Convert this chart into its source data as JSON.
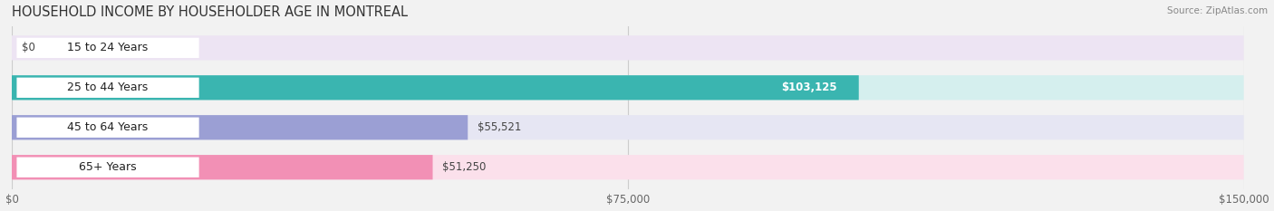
{
  "title": "HOUSEHOLD INCOME BY HOUSEHOLDER AGE IN MONTREAL",
  "source": "Source: ZipAtlas.com",
  "categories": [
    "15 to 24 Years",
    "25 to 44 Years",
    "45 to 64 Years",
    "65+ Years"
  ],
  "values": [
    0,
    103125,
    55521,
    51250
  ],
  "labels": [
    "$0",
    "$103,125",
    "$55,521",
    "$51,250"
  ],
  "label_inside": [
    false,
    true,
    false,
    false
  ],
  "bar_colors": [
    "#c9a8d4",
    "#3ab5b0",
    "#9b9fd4",
    "#f290b5"
  ],
  "bg_colors": [
    "#ede4f3",
    "#d5efee",
    "#e6e6f3",
    "#fbe0eb"
  ],
  "xlim": [
    0,
    150000
  ],
  "xticks": [
    0,
    75000,
    150000
  ],
  "xticklabels": [
    "$0",
    "$75,000",
    "$150,000"
  ],
  "bar_height": 0.62,
  "background_color": "#f2f2f2",
  "title_fontsize": 10.5,
  "label_fontsize": 8.5,
  "tick_fontsize": 8.5,
  "cat_fontsize": 9.0
}
